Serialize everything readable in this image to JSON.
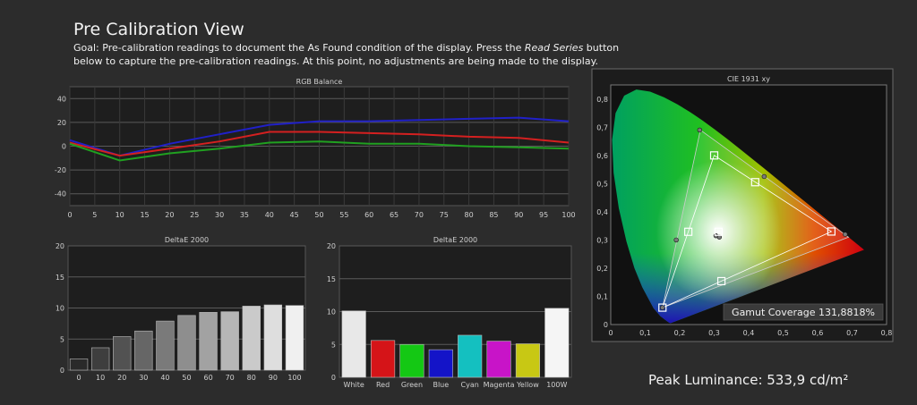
{
  "page": {
    "title": "Pre Calibration View",
    "goal_before": "Goal: Pre-calibration readings to document the As Found condition of the display. Press the ",
    "goal_em": "Read Series",
    "goal_after": " button below to capture the pre-calibration readings. At this point, no adjustments are being made to the display.",
    "peak_label": "Peak Luminance: 533,9 cd/m²"
  },
  "colors": {
    "background": "#2c2c2c",
    "plot_bg": "#1e1e1e",
    "red": "#d42020",
    "green": "#20a020",
    "blue": "#2020c8"
  },
  "chart_data": [
    {
      "id": "rgb",
      "type": "line",
      "title": "RGB Balance",
      "x": [
        0,
        10,
        20,
        30,
        40,
        50,
        60,
        70,
        80,
        90,
        100
      ],
      "xticks": [
        "0",
        "5",
        "10",
        "15",
        "20",
        "25",
        "30",
        "35",
        "40",
        "45",
        "50",
        "55",
        "60",
        "65",
        "70",
        "75",
        "80",
        "85",
        "90",
        "95",
        "100"
      ],
      "yticks": [
        "40",
        "20",
        "0",
        "-20",
        "-40"
      ],
      "ylim": [
        -50,
        50
      ],
      "grid": true,
      "series": [
        {
          "color": "#2020c8",
          "values": [
            5,
            -8,
            2,
            10,
            18,
            21,
            21,
            22,
            23,
            24,
            21
          ]
        },
        {
          "color": "#d42020",
          "values": [
            3,
            -8,
            -2,
            4,
            12,
            12,
            11,
            10,
            8,
            7,
            3
          ]
        },
        {
          "color": "#20a020",
          "values": [
            2,
            -12,
            -6,
            -2,
            3,
            4,
            2,
            2,
            0,
            -1,
            -2
          ]
        }
      ]
    },
    {
      "id": "de1",
      "type": "bar",
      "title": "DeltaE 2000",
      "categories": [
        "0",
        "10",
        "20",
        "30",
        "40",
        "50",
        "60",
        "70",
        "80",
        "90",
        "100"
      ],
      "values": [
        1.8,
        3.6,
        5.4,
        6.3,
        7.9,
        8.8,
        9.3,
        9.4,
        10.3,
        10.5,
        10.4
      ],
      "bar_colors": [
        "#2a2a2a",
        "#3e3e3e",
        "#525252",
        "#666666",
        "#7a7a7a",
        "#8e8e8e",
        "#a2a2a2",
        "#b6b6b6",
        "#cacaca",
        "#dedede",
        "#f0f0f0"
      ],
      "yticks": [
        "20",
        "15",
        "10",
        "5",
        "0"
      ],
      "ylim": [
        0,
        20
      ],
      "grid": true
    },
    {
      "id": "de2",
      "type": "bar",
      "title": "DeltaE 2000",
      "categories": [
        "White",
        "Red",
        "Green",
        "Blue",
        "Cyan",
        "Magenta",
        "Yellow",
        "100W"
      ],
      "values": [
        10.1,
        5.6,
        5.0,
        4.2,
        6.4,
        5.5,
        5.1,
        10.5
      ],
      "bar_colors": [
        "#e8e8e8",
        "#d51418",
        "#14c814",
        "#1414c8",
        "#14c0c0",
        "#c814c8",
        "#c8c814",
        "#f5f5f5"
      ],
      "yticks": [
        "20",
        "15",
        "10",
        "5",
        "0"
      ],
      "ylim": [
        0,
        20
      ],
      "grid": true
    },
    {
      "id": "cie",
      "type": "scatter",
      "title": "CIE 1931 xy",
      "xticks": [
        "0",
        "0,1",
        "0,2",
        "0,3",
        "0,4",
        "0,5",
        "0,6",
        "0,7",
        "0,8"
      ],
      "yticks": [
        "0,8",
        "0,7",
        "0,6",
        "0,5",
        "0,4",
        "0,3",
        "0,2",
        "0,1",
        "0"
      ],
      "xlim": [
        0,
        0.8
      ],
      "ylim": [
        0,
        0.85
      ],
      "gamut_label": "Gamut Coverage 131,8818%",
      "target_triangle": [
        [
          0.64,
          0.33
        ],
        [
          0.3,
          0.6
        ],
        [
          0.15,
          0.06
        ]
      ],
      "measured_triangle": [
        [
          0.69,
          0.31
        ],
        [
          0.26,
          0.69
        ],
        [
          0.15,
          0.06
        ]
      ],
      "targets": [
        [
          0.64,
          0.33
        ],
        [
          0.3,
          0.6
        ],
        [
          0.15,
          0.06
        ],
        [
          0.225,
          0.329
        ],
        [
          0.321,
          0.154
        ],
        [
          0.419,
          0.505
        ],
        [
          0.3127,
          0.329
        ]
      ],
      "measured": [
        [
          0.68,
          0.32
        ],
        [
          0.258,
          0.69
        ],
        [
          0.15,
          0.06
        ],
        [
          0.19,
          0.3
        ],
        [
          0.315,
          0.31
        ],
        [
          0.445,
          0.525
        ],
        [
          0.305,
          0.315
        ]
      ]
    }
  ]
}
